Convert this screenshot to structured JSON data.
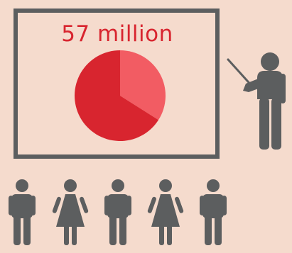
{
  "board": {
    "headline": "57 million"
  },
  "pie": {
    "slices": [
      {
        "share": 0.34,
        "color": "#f25c63"
      },
      {
        "share": 0.66,
        "color": "#d8252f"
      }
    ]
  },
  "colors": {
    "background": "#f5dbcd",
    "figure": "#5c5e5f",
    "headline": "#d8252f"
  },
  "audience": [
    "man",
    "woman",
    "man",
    "woman",
    "man"
  ]
}
